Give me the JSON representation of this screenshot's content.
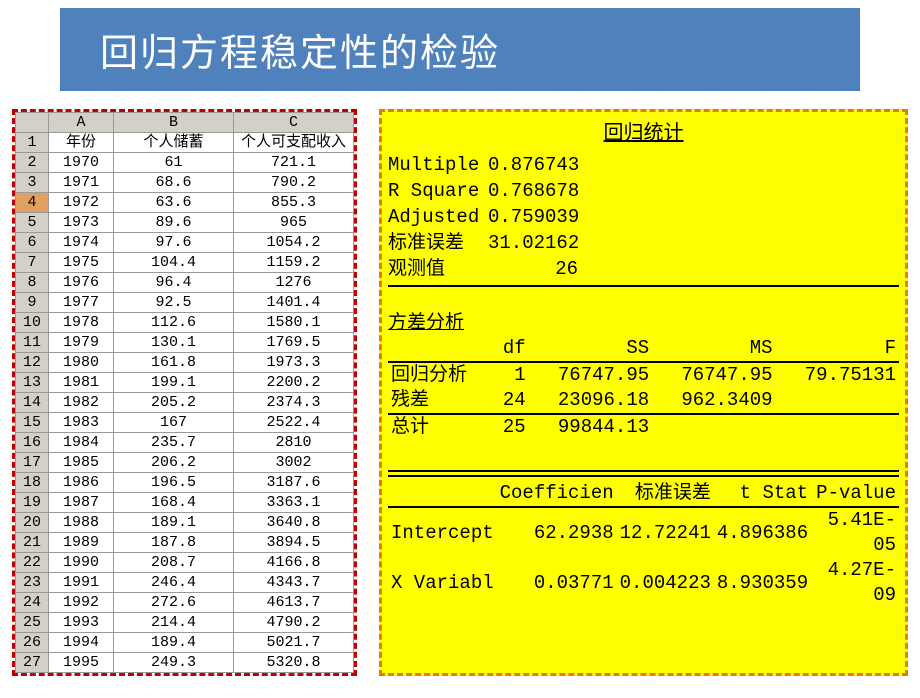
{
  "title": "回归方程稳定性的检验",
  "left_table": {
    "col_letters": [
      "A",
      "B",
      "C"
    ],
    "headers": [
      "年份",
      "个人储蓄",
      "个人可支配收入"
    ],
    "selected_row": 4,
    "rows": [
      {
        "n": 1,
        "c": [
          "年份",
          "个人储蓄",
          "个人可支配收入"
        ],
        "is_header": true
      },
      {
        "n": 2,
        "c": [
          "1970",
          "61",
          "721.1"
        ]
      },
      {
        "n": 3,
        "c": [
          "1971",
          "68.6",
          "790.2"
        ]
      },
      {
        "n": 4,
        "c": [
          "1972",
          "63.6",
          "855.3"
        ]
      },
      {
        "n": 5,
        "c": [
          "1973",
          "89.6",
          "965"
        ]
      },
      {
        "n": 6,
        "c": [
          "1974",
          "97.6",
          "1054.2"
        ]
      },
      {
        "n": 7,
        "c": [
          "1975",
          "104.4",
          "1159.2"
        ]
      },
      {
        "n": 8,
        "c": [
          "1976",
          "96.4",
          "1276"
        ]
      },
      {
        "n": 9,
        "c": [
          "1977",
          "92.5",
          "1401.4"
        ]
      },
      {
        "n": 10,
        "c": [
          "1978",
          "112.6",
          "1580.1"
        ]
      },
      {
        "n": 11,
        "c": [
          "1979",
          "130.1",
          "1769.5"
        ]
      },
      {
        "n": 12,
        "c": [
          "1980",
          "161.8",
          "1973.3"
        ]
      },
      {
        "n": 13,
        "c": [
          "1981",
          "199.1",
          "2200.2"
        ]
      },
      {
        "n": 14,
        "c": [
          "1982",
          "205.2",
          "2374.3"
        ]
      },
      {
        "n": 15,
        "c": [
          "1983",
          "167",
          "2522.4"
        ]
      },
      {
        "n": 16,
        "c": [
          "1984",
          "235.7",
          "2810"
        ]
      },
      {
        "n": 17,
        "c": [
          "1985",
          "206.2",
          "3002"
        ]
      },
      {
        "n": 18,
        "c": [
          "1986",
          "196.5",
          "3187.6"
        ]
      },
      {
        "n": 19,
        "c": [
          "1987",
          "168.4",
          "3363.1"
        ]
      },
      {
        "n": 20,
        "c": [
          "1988",
          "189.1",
          "3640.8"
        ]
      },
      {
        "n": 21,
        "c": [
          "1989",
          "187.8",
          "3894.5"
        ]
      },
      {
        "n": 22,
        "c": [
          "1990",
          "208.7",
          "4166.8"
        ]
      },
      {
        "n": 23,
        "c": [
          "1991",
          "246.4",
          "4343.7"
        ]
      },
      {
        "n": 24,
        "c": [
          "1992",
          "272.6",
          "4613.7"
        ]
      },
      {
        "n": 25,
        "c": [
          "1993",
          "214.4",
          "4790.2"
        ]
      },
      {
        "n": 26,
        "c": [
          "1994",
          "189.4",
          "5021.7"
        ]
      },
      {
        "n": 27,
        "c": [
          "1995",
          "249.3",
          "5320.8"
        ]
      }
    ]
  },
  "right_panel": {
    "regstat_title": "回归统计",
    "stats": [
      {
        "k": "Multiple",
        "v": "0.876743"
      },
      {
        "k": "R Square",
        "v": "0.768678"
      },
      {
        "k": "Adjusted",
        "v": "0.759039"
      },
      {
        "k": "标准误差",
        "v": "31.02162"
      },
      {
        "k": "观测值",
        "v": "26"
      }
    ],
    "anova_title": "方差分析",
    "anova_headers": [
      "",
      "df",
      "SS",
      "MS",
      "F"
    ],
    "anova_rows": [
      {
        "l": "回归分析",
        "c": [
          "1",
          "76747.95",
          "76747.95",
          "79.75131"
        ]
      },
      {
        "l": "残差",
        "c": [
          "24",
          "23096.18",
          "962.3409",
          ""
        ]
      },
      {
        "l": "总计",
        "c": [
          "25",
          "99844.13",
          "",
          ""
        ]
      }
    ],
    "coef_headers": [
      "",
      "Coefficien",
      "标准误差",
      "t Stat",
      "P-value"
    ],
    "coef_rows": [
      {
        "l": "Intercept",
        "c": [
          "62.2938",
          "12.72241",
          "4.896386",
          "5.41E-05"
        ]
      },
      {
        "l": "X Variabl",
        "c": [
          "0.03771",
          "0.004223",
          "8.930359",
          "4.27E-09"
        ]
      }
    ]
  },
  "colors": {
    "title_bg": "#4f81bd",
    "title_fg": "#ffffff",
    "left_border": "#c00000",
    "right_border": "#e08000",
    "right_bg": "#ffff00",
    "cell_hdr": "#d4d0c8",
    "selrow": "#e0a060"
  }
}
